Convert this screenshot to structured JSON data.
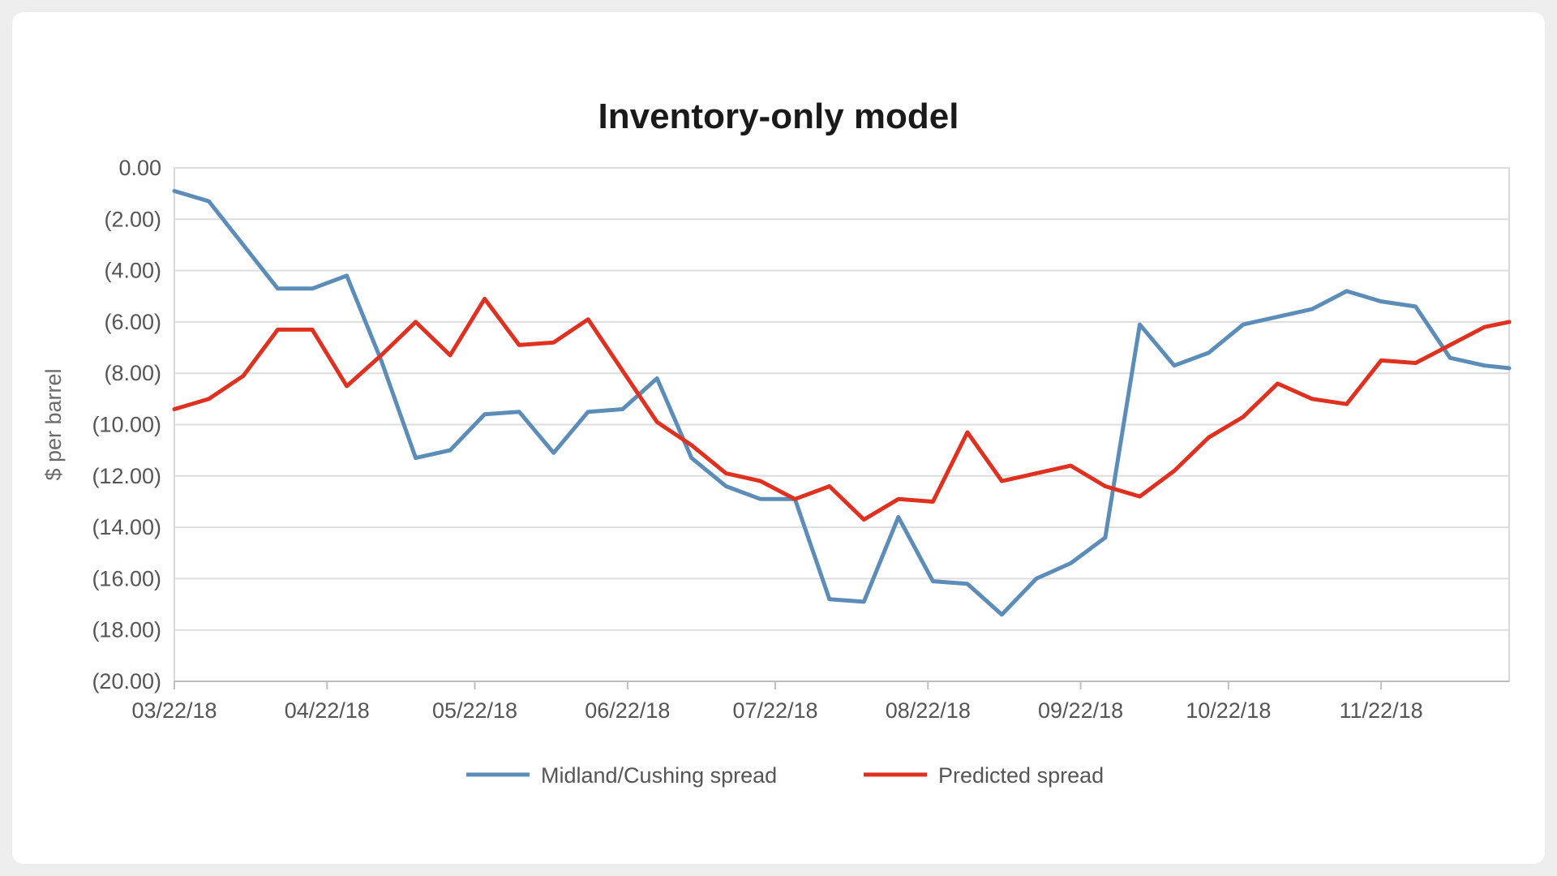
{
  "chart_data": {
    "type": "line",
    "title": "Inventory-only model",
    "xlabel": "",
    "ylabel": "$ per barrel",
    "ylim": [
      -20,
      0
    ],
    "yticks": [
      0,
      -2,
      -4,
      -6,
      -8,
      -10,
      -12,
      -14,
      -16,
      -18,
      -20
    ],
    "ytick_labels": [
      "0.00",
      "(2.00)",
      "(4.00)",
      "(6.00)",
      "(8.00)",
      "(10.00)",
      "(12.00)",
      "(14.00)",
      "(16.00)",
      "(18.00)",
      "(20.00)"
    ],
    "xlim": [
      "2018-03-22",
      "2018-12-18"
    ],
    "xticks": [
      {
        "date": "2018-03-22",
        "label": "03/22/18"
      },
      {
        "date": "2018-04-22",
        "label": "04/22/18"
      },
      {
        "date": "2018-05-22",
        "label": "05/22/18"
      },
      {
        "date": "2018-06-22",
        "label": "06/22/18"
      },
      {
        "date": "2018-07-22",
        "label": "07/22/18"
      },
      {
        "date": "2018-08-22",
        "label": "08/22/18"
      },
      {
        "date": "2018-09-22",
        "label": "09/22/18"
      },
      {
        "date": "2018-10-22",
        "label": "10/22/18"
      },
      {
        "date": "2018-11-22",
        "label": "11/22/18"
      }
    ],
    "x": [
      "2018-03-22",
      "2018-03-29",
      "2018-04-05",
      "2018-04-12",
      "2018-04-19",
      "2018-04-26",
      "2018-05-03",
      "2018-05-10",
      "2018-05-17",
      "2018-05-24",
      "2018-05-31",
      "2018-06-07",
      "2018-06-14",
      "2018-06-21",
      "2018-06-28",
      "2018-07-05",
      "2018-07-12",
      "2018-07-19",
      "2018-07-26",
      "2018-08-02",
      "2018-08-09",
      "2018-08-16",
      "2018-08-23",
      "2018-08-30",
      "2018-09-06",
      "2018-09-13",
      "2018-09-20",
      "2018-09-27",
      "2018-10-04",
      "2018-10-11",
      "2018-10-18",
      "2018-10-25",
      "2018-11-01",
      "2018-11-08",
      "2018-11-15",
      "2018-11-22",
      "2018-11-29",
      "2018-12-06",
      "2018-12-13",
      "2018-12-18"
    ],
    "series": [
      {
        "name": "Midland/Cushing spread",
        "color": "#5b8db8",
        "values": [
          -0.9,
          -1.3,
          -3.0,
          -4.7,
          -4.7,
          -4.2,
          -7.5,
          -11.3,
          -11.0,
          -9.6,
          -9.5,
          -11.1,
          -9.5,
          -9.4,
          -8.2,
          -11.3,
          -12.4,
          -12.9,
          -12.9,
          -16.8,
          -16.9,
          -13.6,
          -16.1,
          -16.2,
          -17.4,
          -16.0,
          -15.4,
          -14.4,
          -6.1,
          -7.7,
          -7.2,
          -6.1,
          -5.8,
          -5.5,
          -4.8,
          -5.2,
          -5.4,
          -7.4,
          -7.7,
          -7.8
        ]
      },
      {
        "name": "Predicted spread",
        "color": "#e03020",
        "values": [
          -9.4,
          -9.0,
          -8.1,
          -6.3,
          -6.3,
          -8.5,
          -7.3,
          -6.0,
          -7.3,
          -5.1,
          -6.9,
          -6.8,
          -5.9,
          -7.9,
          -9.9,
          -10.8,
          -11.9,
          -12.2,
          -12.9,
          -12.4,
          -13.7,
          -12.9,
          -13.0,
          -10.3,
          -12.2,
          -11.9,
          -11.6,
          -12.4,
          -12.8,
          -11.8,
          -10.5,
          -9.7,
          -8.4,
          -9.0,
          -9.2,
          -7.5,
          -7.6,
          -6.9,
          -6.2,
          -6.0
        ]
      }
    ],
    "grid": "horizontal",
    "legend": "bottom",
    "legend_entries": [
      "Midland/Cushing spread",
      "Predicted spread"
    ]
  }
}
